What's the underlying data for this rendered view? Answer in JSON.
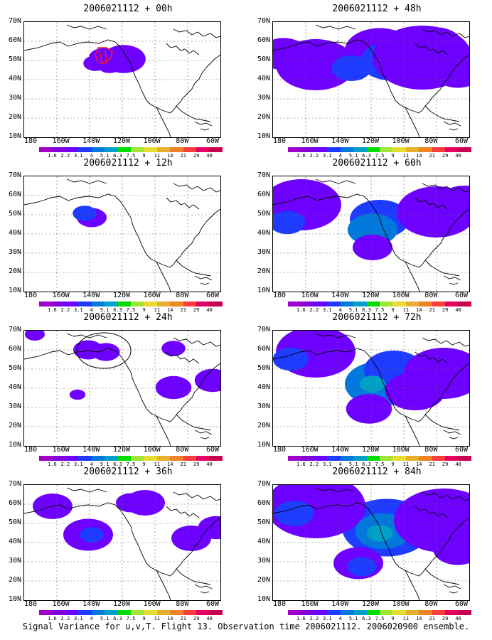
{
  "panels": [
    {
      "title": "2006021112 + 00h",
      "blobs": [
        [
          4,
          120,
          61,
          1.2
        ],
        [
          4,
          140,
          52,
          2.2
        ],
        [
          4,
          112,
          50,
          1.5
        ],
        [
          4,
          100,
          58,
          1.2
        ]
      ],
      "box": true,
      "ellipse": false
    },
    {
      "title": "2006021112 + 48h",
      "blobs": [
        [
          4,
          150,
          40,
          3.5
        ],
        [
          5,
          165,
          55,
          3
        ],
        [
          4,
          210,
          50,
          5
        ],
        [
          4,
          60,
          60,
          4
        ],
        [
          4,
          15,
          45,
          2.5
        ],
        [
          4,
          260,
          70,
          2.5
        ],
        [
          4,
          230,
          30,
          2.5
        ],
        [
          5,
          110,
          65,
          2
        ]
      ],
      "box": false,
      "ellipse": false
    },
    {
      "title": "2006021112 + 12h",
      "blobs": [
        [
          4,
          95,
          58,
          1.5
        ],
        [
          5,
          85,
          52,
          1.2
        ]
      ],
      "box": false,
      "ellipse": false
    },
    {
      "title": "2006021112 + 60h",
      "blobs": [
        [
          5,
          150,
          60,
          3
        ],
        [
          6,
          140,
          75,
          2.5
        ],
        [
          4,
          40,
          40,
          4
        ],
        [
          4,
          230,
          50,
          4
        ],
        [
          4,
          140,
          100,
          2
        ],
        [
          5,
          20,
          65,
          1.8
        ],
        [
          4,
          270,
          40,
          3
        ]
      ],
      "box": false,
      "ellipse": false
    },
    {
      "title": "2006021112 + 24h",
      "blobs": [
        [
          4,
          90,
          27,
          1.5
        ],
        [
          4,
          115,
          30,
          1.4
        ],
        [
          4,
          210,
          25,
          1.2
        ],
        [
          4,
          210,
          80,
          1.8
        ],
        [
          4,
          265,
          70,
          1.8
        ],
        [
          4,
          75,
          90,
          0.8
        ],
        [
          4,
          15,
          5,
          1
        ]
      ],
      "box": false,
      "ellipse": true
    },
    {
      "title": "2006021112 + 72h",
      "blobs": [
        [
          6,
          150,
          75,
          3.5
        ],
        [
          5,
          170,
          55,
          3
        ],
        [
          7,
          140,
          75,
          1.3
        ],
        [
          4,
          60,
          30,
          4
        ],
        [
          5,
          25,
          40,
          1.8
        ],
        [
          4,
          240,
          60,
          4
        ],
        [
          4,
          135,
          110,
          2.3
        ],
        [
          4,
          200,
          85,
          3
        ]
      ],
      "box": false,
      "ellipse": false
    },
    {
      "title": "2006021112 + 36h",
      "blobs": [
        [
          4,
          40,
          30,
          2
        ],
        [
          4,
          90,
          70,
          2.5
        ],
        [
          5,
          95,
          70,
          1.2
        ],
        [
          4,
          170,
          25,
          2
        ],
        [
          4,
          235,
          75,
          2
        ],
        [
          4,
          150,
          25,
          1.5
        ],
        [
          4,
          270,
          60,
          1.8
        ]
      ],
      "box": false,
      "ellipse": false
    },
    {
      "title": "2006021112 + 84h",
      "blobs": [
        [
          5,
          160,
          60,
          4.5
        ],
        [
          6,
          155,
          65,
          2.8
        ],
        [
          7,
          150,
          68,
          1.3
        ],
        [
          4,
          60,
          30,
          5
        ],
        [
          5,
          30,
          40,
          2
        ],
        [
          4,
          240,
          50,
          5
        ],
        [
          4,
          120,
          110,
          2.5
        ],
        [
          5,
          125,
          115,
          1.5
        ],
        [
          4,
          260,
          90,
          2.5
        ]
      ],
      "box": false,
      "ellipse": false
    }
  ],
  "y_labels": [
    "70N",
    "60N",
    "50N",
    "40N",
    "30N",
    "20N",
    "10N"
  ],
  "x_labels": [
    "180",
    "160W",
    "140W",
    "120W",
    "100W",
    "80W",
    "60W"
  ],
  "colorbar_labels": [
    "1.6",
    "2.2",
    "3.1",
    "4",
    "5.1",
    "6.3",
    "7.5",
    "9",
    "11",
    "14",
    "21",
    "29",
    "40"
  ],
  "colorbar_colors": [
    "#a000c8",
    "#8200dc",
    "#6e00ff",
    "#1e3cff",
    "#0078dc",
    "#00a0c8",
    "#00dc00",
    "#a0e632",
    "#e6dc32",
    "#e6af2d",
    "#f08228",
    "#fa3c3c",
    "#e60064",
    "#c80050"
  ],
  "caption": "Signal Variance for u,v,T. Flight 13. Observation time 2006021112. 2006020900 ensemble."
}
